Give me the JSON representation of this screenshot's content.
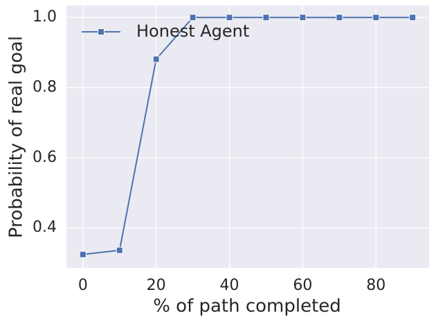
{
  "chart_data": {
    "type": "line",
    "x": [
      0,
      10,
      20,
      30,
      40,
      50,
      60,
      70,
      80,
      90
    ],
    "series": [
      {
        "name": "Honest Agent",
        "color": "#4c72b0",
        "values": [
          0.324,
          0.336,
          0.881,
          1.0,
          1.0,
          1.0,
          1.0,
          1.0,
          1.0,
          1.0
        ]
      }
    ],
    "x_label": "% of path completed",
    "y_label": "Probability of real goal",
    "xlim": [
      -4.5,
      94.5
    ],
    "xticks": [
      0,
      20,
      40,
      60,
      80
    ],
    "ylim": [
      0.286,
      1.034
    ],
    "yticks": [
      {
        "value": 0.4,
        "label": "0.4"
      },
      {
        "value": 0.6,
        "label": "0.6"
      },
      {
        "value": 0.8,
        "label": "0.8"
      },
      {
        "value": 1.0,
        "label": "1.0"
      }
    ],
    "grid": true,
    "legend": "upper-left",
    "marker": "square"
  }
}
